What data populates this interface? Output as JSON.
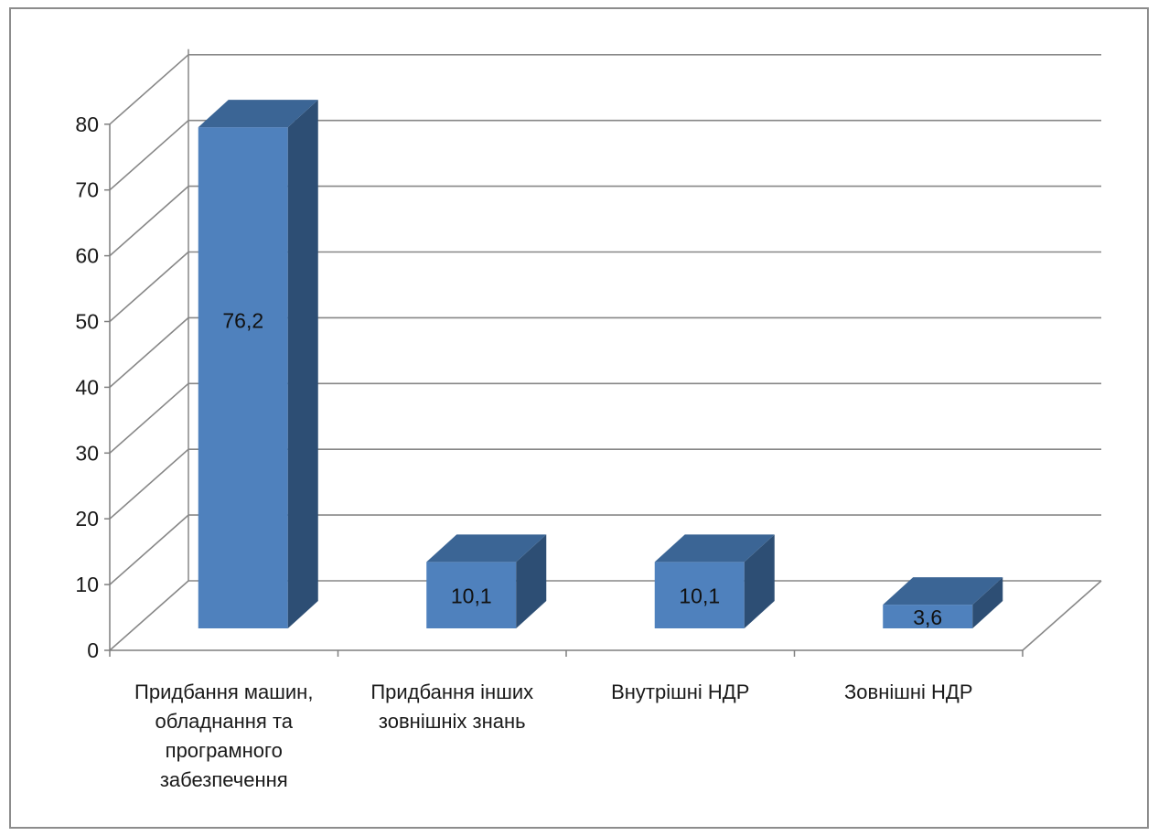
{
  "chart_data": {
    "type": "bar",
    "style": "3d-column",
    "categories": [
      [
        "Придбання машин,",
        "обладнання та",
        "програмного",
        "забезпечення"
      ],
      [
        "Придбання інших",
        "зовнішніх знань"
      ],
      [
        "Внутрішні НДР"
      ],
      [
        "Зовнішні НДР"
      ]
    ],
    "values": [
      76.2,
      10.1,
      10.1,
      3.6
    ],
    "data_labels": [
      "76,2",
      "10,1",
      "10,1",
      "3,6"
    ],
    "yticks": [
      "0",
      "10",
      "20",
      "30",
      "40",
      "50",
      "60",
      "70",
      "80"
    ],
    "ylim": [
      0,
      80
    ],
    "grid": true,
    "legend": false,
    "colors": {
      "front": "#4f81bd",
      "side": "#2d4e74",
      "top": "#3b6595",
      "grid": "#878787",
      "axis": "#7f7f7f"
    }
  }
}
